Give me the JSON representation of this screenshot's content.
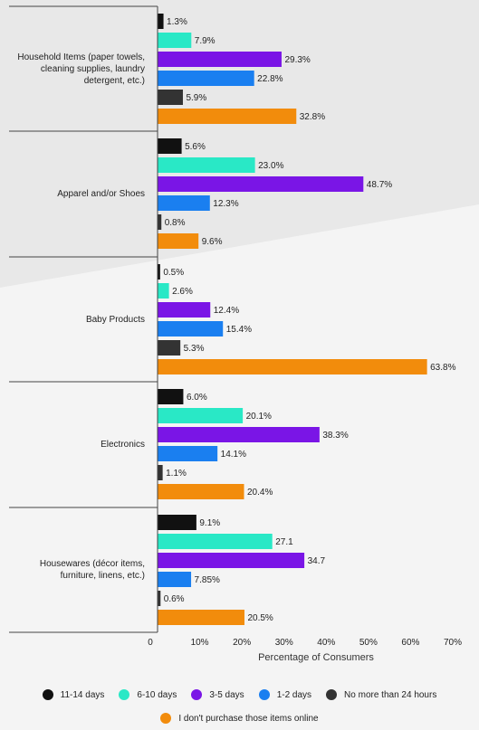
{
  "chart_data": {
    "type": "bar",
    "orientation": "horizontal",
    "categories": [
      "Household Items (paper towels, cleaning supplies, laundry detergent, etc.)",
      "Apparel and/or Shoes",
      "Baby Products",
      "Electronics",
      "Housewares (décor items, furniture, linens, etc.)"
    ],
    "series": [
      {
        "name": "11-14 days",
        "color": "#111111",
        "values": [
          1.3,
          5.6,
          0.5,
          6.0,
          9.1
        ],
        "labels": [
          "1.3%",
          "5.6%",
          "0.5%",
          "6.0%",
          "9.1%"
        ]
      },
      {
        "name": "6-10 days",
        "color": "#29e8c6",
        "values": [
          7.9,
          23.0,
          2.6,
          20.1,
          27.1
        ],
        "labels": [
          "7.9%",
          "23.0%",
          "2.6%",
          "20.1%",
          "27.1"
        ]
      },
      {
        "name": "3-5 days",
        "color": "#7a15e6",
        "values": [
          29.3,
          48.7,
          12.4,
          38.3,
          34.7
        ],
        "labels": [
          "29.3%",
          "48.7%",
          "12.4%",
          "38.3%",
          "34.7"
        ]
      },
      {
        "name": "1-2 days",
        "color": "#1a7ff0",
        "values": [
          22.8,
          12.3,
          15.4,
          14.1,
          7.85
        ],
        "labels": [
          "22.8%",
          "12.3%",
          "15.4%",
          "14.1%",
          "7.85%"
        ]
      },
      {
        "name": "No more than 24 hours",
        "color": "#333333",
        "values": [
          5.9,
          0.8,
          5.3,
          1.1,
          0.6
        ],
        "labels": [
          "5.9%",
          "0.8%",
          "5.3%",
          "1.1%",
          "0.6%"
        ]
      },
      {
        "name": "I don't purchase those items online",
        "color": "#f28c0c",
        "values": [
          32.8,
          9.6,
          63.8,
          20.4,
          20.5
        ],
        "labels": [
          "32.8%",
          "9.6%",
          "63.8%",
          "20.4%",
          "20.5%"
        ]
      }
    ],
    "x_ticks": [
      "0",
      "10%",
      "20%",
      "30%",
      "40%",
      "50%",
      "60%",
      "70%"
    ],
    "xlim": [
      0,
      70
    ],
    "xlabel": "Percentage of Consumers",
    "legend_placement": "bottom",
    "grid": false
  }
}
